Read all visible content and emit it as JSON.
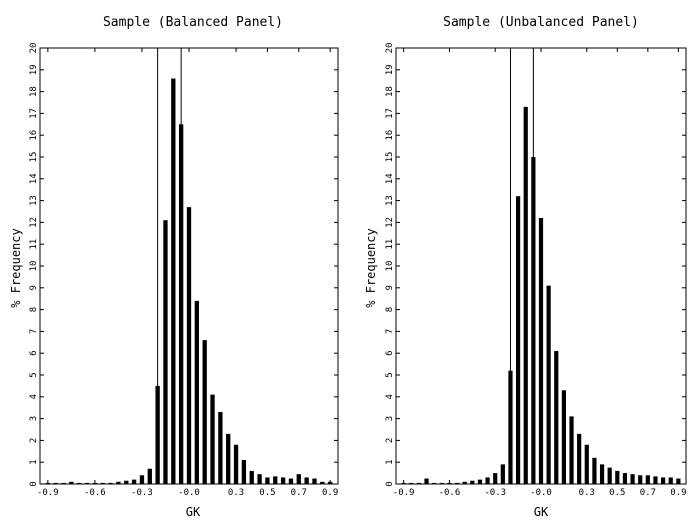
{
  "chart_data": [
    {
      "type": "bar",
      "title": "Sample (Balanced Panel)",
      "xlabel": "GK",
      "ylabel": "% Frequency",
      "x_ticks": [
        "-0.9",
        "-0.6",
        "-0.3",
        "-0.0",
        "0.3",
        "0.5",
        "0.7",
        "0.9"
      ],
      "y_ticks": [
        "0",
        "1",
        "2",
        "3",
        "4",
        "5",
        "6",
        "7",
        "8",
        "9",
        "10",
        "11",
        "12",
        "13",
        "14",
        "15",
        "16",
        "17",
        "18",
        "19",
        "20"
      ],
      "xlim": [
        -0.95,
        0.95
      ],
      "ylim": [
        0,
        20
      ],
      "grid": false,
      "vlines": [
        -0.2,
        -0.05
      ],
      "x": [
        -0.9,
        -0.85,
        -0.8,
        -0.75,
        -0.7,
        -0.65,
        -0.6,
        -0.55,
        -0.5,
        -0.45,
        -0.4,
        -0.35,
        -0.3,
        -0.25,
        -0.2,
        -0.15,
        -0.1,
        -0.05,
        0.0,
        0.05,
        0.1,
        0.15,
        0.2,
        0.25,
        0.3,
        0.35,
        0.4,
        0.45,
        0.5,
        0.55,
        0.6,
        0.65,
        0.7,
        0.75,
        0.8,
        0.85,
        0.9
      ],
      "values": [
        0.05,
        0.05,
        0.05,
        0.1,
        0.05,
        0.05,
        0.05,
        0.05,
        0.05,
        0.1,
        0.15,
        0.2,
        0.4,
        0.7,
        4.5,
        12.1,
        18.6,
        16.5,
        12.7,
        8.4,
        6.6,
        4.1,
        3.3,
        2.3,
        1.8,
        1.1,
        0.6,
        0.45,
        0.3,
        0.35,
        0.3,
        0.25,
        0.45,
        0.3,
        0.25,
        0.1,
        0.1
      ]
    },
    {
      "type": "bar",
      "title": "Sample (Unbalanced Panel)",
      "xlabel": "GK",
      "ylabel": "% Frequency",
      "x_ticks": [
        "-0.9",
        "-0.6",
        "-0.3",
        "-0.0",
        "0.3",
        "0.5",
        "0.7",
        "0.9"
      ],
      "y_ticks": [
        "0",
        "1",
        "2",
        "3",
        "4",
        "5",
        "6",
        "7",
        "8",
        "9",
        "10",
        "11",
        "12",
        "13",
        "14",
        "15",
        "16",
        "17",
        "18",
        "19",
        "20"
      ],
      "xlim": [
        -0.95,
        0.95
      ],
      "ylim": [
        0,
        20
      ],
      "grid": false,
      "vlines": [
        -0.2,
        -0.05
      ],
      "x": [
        -0.9,
        -0.85,
        -0.8,
        -0.75,
        -0.7,
        -0.65,
        -0.6,
        -0.55,
        -0.5,
        -0.45,
        -0.4,
        -0.35,
        -0.3,
        -0.25,
        -0.2,
        -0.15,
        -0.1,
        -0.05,
        0.0,
        0.05,
        0.1,
        0.15,
        0.2,
        0.25,
        0.3,
        0.35,
        0.4,
        0.45,
        0.5,
        0.55,
        0.6,
        0.65,
        0.7,
        0.75,
        0.8,
        0.85,
        0.9
      ],
      "values": [
        0.05,
        0.05,
        0.05,
        0.25,
        0.05,
        0.05,
        0.05,
        0.05,
        0.1,
        0.15,
        0.2,
        0.3,
        0.5,
        0.9,
        5.2,
        13.2,
        17.3,
        15.0,
        12.2,
        9.1,
        6.1,
        4.3,
        3.1,
        2.3,
        1.8,
        1.2,
        0.9,
        0.75,
        0.6,
        0.5,
        0.45,
        0.4,
        0.4,
        0.35,
        0.3,
        0.3,
        0.25
      ]
    }
  ]
}
